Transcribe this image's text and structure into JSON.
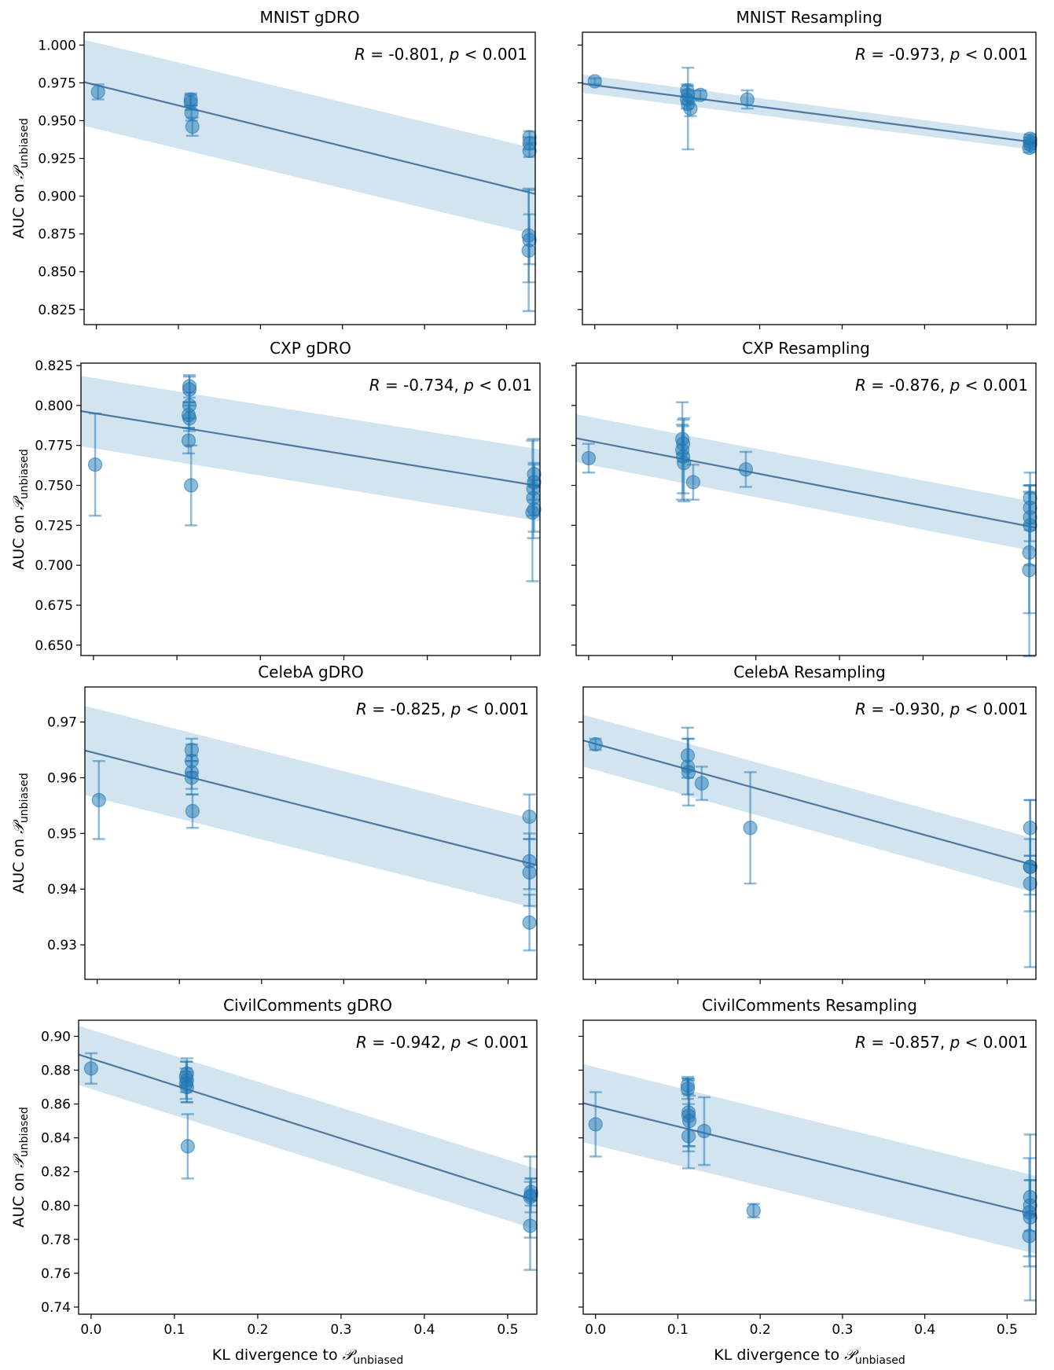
{
  "figure": {
    "xlabel_main": "KL divergence to ",
    "ylabel_main": "AUC on ",
    "script_symbol": "𝒫",
    "subscript": "unbiased"
  },
  "chart_data": [
    {
      "type": "scatter",
      "title": "MNIST gDRO",
      "stat": {
        "r": "-0.801",
        "p": "< 0.001"
      },
      "xlim": [
        -0.015,
        0.535
      ],
      "ylim": [
        0.815,
        1.0085
      ],
      "xticks": [
        0.0,
        0.1,
        0.2,
        0.3,
        0.4,
        0.5
      ],
      "yticks": [
        "0.825",
        "0.850",
        "0.875",
        "0.900",
        "0.925",
        "0.950",
        "0.975",
        "1.000"
      ],
      "show_ylabels": true,
      "show_xlabels": false,
      "fit": {
        "x0": -0.015,
        "y0": 0.9755,
        "x1": 0.535,
        "y1": 0.9015
      },
      "band": {
        "upper0": 1.0035,
        "upper1": 0.9315,
        "lower0": 0.9465,
        "lower1": 0.8745
      },
      "points": [
        {
          "x": 0.002,
          "y": 0.969,
          "lo": 0.964,
          "hi": 0.974
        },
        {
          "x": 0.115,
          "y": 0.964,
          "lo": 0.96,
          "hi": 0.968
        },
        {
          "x": 0.115,
          "y": 0.962,
          "lo": 0.957,
          "hi": 0.967
        },
        {
          "x": 0.116,
          "y": 0.955,
          "lo": 0.95,
          "hi": 0.96
        },
        {
          "x": 0.117,
          "y": 0.946,
          "lo": 0.94,
          "hi": 0.952
        },
        {
          "x": 0.528,
          "y": 0.939,
          "lo": 0.935,
          "hi": 0.943
        },
        {
          "x": 0.528,
          "y": 0.935,
          "lo": 0.931,
          "hi": 0.939
        },
        {
          "x": 0.528,
          "y": 0.93,
          "lo": 0.926,
          "hi": 0.934
        },
        {
          "x": 0.527,
          "y": 0.874,
          "lo": 0.843,
          "hi": 0.905
        },
        {
          "x": 0.528,
          "y": 0.871,
          "lo": 0.855,
          "hi": 0.888
        },
        {
          "x": 0.527,
          "y": 0.864,
          "lo": 0.824,
          "hi": 0.904
        }
      ]
    },
    {
      "type": "scatter",
      "title": "MNIST Resampling",
      "stat": {
        "r": "-0.973",
        "p": "< 0.001"
      },
      "xlim": [
        -0.015,
        0.535
      ],
      "ylim": [
        0.815,
        1.0085
      ],
      "xticks": [
        0.0,
        0.1,
        0.2,
        0.3,
        0.4,
        0.5
      ],
      "yticks": [
        "0.825",
        "0.850",
        "0.875",
        "0.900",
        "0.925",
        "0.950",
        "0.975",
        "1.000"
      ],
      "show_ylabels": false,
      "show_xlabels": false,
      "fit": {
        "x0": -0.015,
        "y0": 0.9745,
        "x1": 0.535,
        "y1": 0.9355
      },
      "band": {
        "upper0": 0.9805,
        "upper1": 0.9405,
        "lower0": 0.9685,
        "lower1": 0.9305
      },
      "points": [
        {
          "x": 0.0,
          "y": 0.976,
          "lo": 0.974,
          "hi": 0.978
        },
        {
          "x": 0.112,
          "y": 0.97,
          "lo": 0.966,
          "hi": 0.974
        },
        {
          "x": 0.113,
          "y": 0.967,
          "lo": 0.961,
          "hi": 0.973
        },
        {
          "x": 0.112,
          "y": 0.964,
          "lo": 0.958,
          "hi": 0.97
        },
        {
          "x": 0.113,
          "y": 0.961,
          "lo": 0.931,
          "hi": 0.985
        },
        {
          "x": 0.116,
          "y": 0.958,
          "lo": 0.953,
          "hi": 0.963
        },
        {
          "x": 0.128,
          "y": 0.967,
          "lo": 0.964,
          "hi": 0.97
        },
        {
          "x": 0.185,
          "y": 0.964,
          "lo": 0.958,
          "hi": 0.97
        },
        {
          "x": 0.528,
          "y": 0.938,
          "lo": 0.935,
          "hi": 0.941
        },
        {
          "x": 0.528,
          "y": 0.936,
          "lo": 0.933,
          "hi": 0.939
        },
        {
          "x": 0.528,
          "y": 0.934,
          "lo": 0.931,
          "hi": 0.937
        },
        {
          "x": 0.527,
          "y": 0.932,
          "lo": 0.929,
          "hi": 0.935
        }
      ]
    },
    {
      "type": "scatter",
      "title": "CXP gDRO",
      "stat": {
        "r": "-0.734",
        "p": "< 0.01"
      },
      "xlim": [
        -0.015,
        0.535
      ],
      "ylim": [
        0.6435,
        0.8265
      ],
      "xticks": [
        0.0,
        0.1,
        0.2,
        0.3,
        0.4,
        0.5
      ],
      "yticks": [
        "0.650",
        "0.675",
        "0.700",
        "0.725",
        "0.750",
        "0.775",
        "0.800",
        "0.825"
      ],
      "show_ylabels": true,
      "show_xlabels": false,
      "fit": {
        "x0": -0.015,
        "y0": 0.7965,
        "x1": 0.535,
        "y1": 0.7495
      },
      "band": {
        "upper0": 0.8185,
        "upper1": 0.7725,
        "lower0": 0.7745,
        "lower1": 0.7275
      },
      "points": [
        {
          "x": 0.002,
          "y": 0.763,
          "lo": 0.731,
          "hi": 0.795
        },
        {
          "x": 0.115,
          "y": 0.812,
          "lo": 0.805,
          "hi": 0.819
        },
        {
          "x": 0.115,
          "y": 0.81,
          "lo": 0.802,
          "hi": 0.818
        },
        {
          "x": 0.115,
          "y": 0.8,
          "lo": 0.792,
          "hi": 0.808
        },
        {
          "x": 0.114,
          "y": 0.794,
          "lo": 0.786,
          "hi": 0.802
        },
        {
          "x": 0.115,
          "y": 0.792,
          "lo": 0.784,
          "hi": 0.8
        },
        {
          "x": 0.114,
          "y": 0.778,
          "lo": 0.77,
          "hi": 0.786
        },
        {
          "x": 0.117,
          "y": 0.75,
          "lo": 0.725,
          "hi": 0.775
        },
        {
          "x": 0.528,
          "y": 0.757,
          "lo": 0.75,
          "hi": 0.764
        },
        {
          "x": 0.528,
          "y": 0.752,
          "lo": 0.741,
          "hi": 0.763
        },
        {
          "x": 0.527,
          "y": 0.748,
          "lo": 0.717,
          "hi": 0.779
        },
        {
          "x": 0.527,
          "y": 0.742,
          "lo": 0.731,
          "hi": 0.753
        },
        {
          "x": 0.528,
          "y": 0.735,
          "lo": 0.721,
          "hi": 0.749
        },
        {
          "x": 0.526,
          "y": 0.733,
          "lo": 0.69,
          "hi": 0.778
        }
      ]
    },
    {
      "type": "scatter",
      "title": "CXP Resampling",
      "stat": {
        "r": "-0.876",
        "p": "< 0.001"
      },
      "xlim": [
        -0.015,
        0.535
      ],
      "ylim": [
        0.6435,
        0.8265
      ],
      "xticks": [
        0.0,
        0.1,
        0.2,
        0.3,
        0.4,
        0.5
      ],
      "yticks": [
        "0.650",
        "0.675",
        "0.700",
        "0.725",
        "0.750",
        "0.775",
        "0.800",
        "0.825"
      ],
      "show_ylabels": false,
      "show_xlabels": false,
      "fit": {
        "x0": -0.015,
        "y0": 0.7795,
        "x1": 0.535,
        "y1": 0.7235
      },
      "band": {
        "upper0": 0.7945,
        "upper1": 0.7395,
        "lower0": 0.7645,
        "lower1": 0.7085
      },
      "points": [
        {
          "x": 0.0,
          "y": 0.767,
          "lo": 0.758,
          "hi": 0.776
        },
        {
          "x": 0.112,
          "y": 0.779,
          "lo": 0.77,
          "hi": 0.788
        },
        {
          "x": 0.113,
          "y": 0.776,
          "lo": 0.765,
          "hi": 0.787
        },
        {
          "x": 0.112,
          "y": 0.772,
          "lo": 0.741,
          "hi": 0.802
        },
        {
          "x": 0.113,
          "y": 0.768,
          "lo": 0.745,
          "hi": 0.791
        },
        {
          "x": 0.114,
          "y": 0.764,
          "lo": 0.74,
          "hi": 0.792
        },
        {
          "x": 0.125,
          "y": 0.752,
          "lo": 0.741,
          "hi": 0.763
        },
        {
          "x": 0.188,
          "y": 0.76,
          "lo": 0.749,
          "hi": 0.771
        },
        {
          "x": 0.528,
          "y": 0.742,
          "lo": 0.726,
          "hi": 0.758
        },
        {
          "x": 0.528,
          "y": 0.736,
          "lo": 0.722,
          "hi": 0.75
        },
        {
          "x": 0.528,
          "y": 0.73,
          "lo": 0.715,
          "hi": 0.745
        },
        {
          "x": 0.528,
          "y": 0.725,
          "lo": 0.7,
          "hi": 0.75
        },
        {
          "x": 0.527,
          "y": 0.708,
          "lo": 0.67,
          "hi": 0.746
        },
        {
          "x": 0.527,
          "y": 0.697,
          "lo": 0.643,
          "hi": 0.75
        }
      ]
    },
    {
      "type": "scatter",
      "title": "CelebA gDRO",
      "stat": {
        "r": "-0.825",
        "p": "< 0.001"
      },
      "xlim": [
        -0.015,
        0.535
      ],
      "ylim": [
        0.9238,
        0.9763
      ],
      "xticks": [
        0.0,
        0.1,
        0.2,
        0.3,
        0.4,
        0.5
      ],
      "yticks": [
        "0.93",
        "0.94",
        "0.95",
        "0.96",
        "0.97"
      ],
      "show_ylabels": true,
      "show_xlabels": false,
      "fit": {
        "x0": -0.015,
        "y0": 0.9649,
        "x1": 0.535,
        "y1": 0.9443
      },
      "band": {
        "upper0": 0.9729,
        "upper1": 0.9524,
        "lower0": 0.9569,
        "lower1": 0.9365
      },
      "points": [
        {
          "x": 0.002,
          "y": 0.956,
          "lo": 0.949,
          "hi": 0.963
        },
        {
          "x": 0.115,
          "y": 0.965,
          "lo": 0.963,
          "hi": 0.967
        },
        {
          "x": 0.115,
          "y": 0.963,
          "lo": 0.961,
          "hi": 0.966
        },
        {
          "x": 0.115,
          "y": 0.961,
          "lo": 0.958,
          "hi": 0.964
        },
        {
          "x": 0.115,
          "y": 0.96,
          "lo": 0.957,
          "hi": 0.963
        },
        {
          "x": 0.116,
          "y": 0.954,
          "lo": 0.951,
          "hi": 0.957
        },
        {
          "x": 0.526,
          "y": 0.953,
          "lo": 0.949,
          "hi": 0.957
        },
        {
          "x": 0.526,
          "y": 0.945,
          "lo": 0.94,
          "hi": 0.95
        },
        {
          "x": 0.526,
          "y": 0.943,
          "lo": 0.937,
          "hi": 0.949
        },
        {
          "x": 0.526,
          "y": 0.934,
          "lo": 0.929,
          "hi": 0.939
        }
      ]
    },
    {
      "type": "scatter",
      "title": "CelebA Resampling",
      "stat": {
        "r": "-0.930",
        "p": "< 0.001"
      },
      "xlim": [
        -0.015,
        0.535
      ],
      "ylim": [
        0.9238,
        0.9763
      ],
      "xticks": [
        0.0,
        0.1,
        0.2,
        0.3,
        0.4,
        0.5
      ],
      "yticks": [
        "0.93",
        "0.94",
        "0.95",
        "0.96",
        "0.97"
      ],
      "show_ylabels": false,
      "show_xlabels": false,
      "fit": {
        "x0": -0.015,
        "y0": 0.9667,
        "x1": 0.535,
        "y1": 0.9442
      },
      "band": {
        "upper0": 0.9713,
        "upper1": 0.949,
        "lower0": 0.962,
        "lower1": 0.9393
      },
      "points": [
        {
          "x": 0.0,
          "y": 0.966,
          "lo": 0.965,
          "hi": 0.967
        },
        {
          "x": 0.112,
          "y": 0.964,
          "lo": 0.96,
          "hi": 0.969
        },
        {
          "x": 0.112,
          "y": 0.962,
          "lo": 0.957,
          "hi": 0.967
        },
        {
          "x": 0.113,
          "y": 0.961,
          "lo": 0.955,
          "hi": 0.967
        },
        {
          "x": 0.129,
          "y": 0.959,
          "lo": 0.956,
          "hi": 0.962
        },
        {
          "x": 0.188,
          "y": 0.951,
          "lo": 0.941,
          "hi": 0.961
        },
        {
          "x": 0.528,
          "y": 0.951,
          "lo": 0.946,
          "hi": 0.956
        },
        {
          "x": 0.528,
          "y": 0.944,
          "lo": 0.939,
          "hi": 0.949
        },
        {
          "x": 0.528,
          "y": 0.944,
          "lo": 0.926,
          "hi": 0.956
        },
        {
          "x": 0.528,
          "y": 0.941,
          "lo": 0.936,
          "hi": 0.946
        }
      ]
    },
    {
      "type": "scatter",
      "title": "CivilComments gDRO",
      "stat": {
        "r": "-0.942",
        "p": "< 0.001"
      },
      "xlim": [
        -0.015,
        0.535
      ],
      "ylim": [
        0.7358,
        0.9095
      ],
      "xticks": [
        0.0,
        0.1,
        0.2,
        0.3,
        0.4,
        0.5
      ],
      "yticks": [
        "0.74",
        "0.76",
        "0.78",
        "0.80",
        "0.82",
        "0.84",
        "0.86",
        "0.88",
        "0.90"
      ],
      "xtick_labels": [
        "0.0",
        "0.1",
        "0.2",
        "0.3",
        "0.4",
        "0.5"
      ],
      "show_ylabels": true,
      "show_xlabels": true,
      "fit": {
        "x0": -0.015,
        "y0": 0.8892,
        "x1": 0.535,
        "y1": 0.8027
      },
      "band": {
        "upper0": 0.9062,
        "upper1": 0.8217,
        "lower0": 0.8712,
        "lower1": 0.7857
      },
      "points": [
        {
          "x": 0.0,
          "y": 0.881,
          "lo": 0.872,
          "hi": 0.89
        },
        {
          "x": 0.115,
          "y": 0.878,
          "lo": 0.871,
          "hi": 0.885
        },
        {
          "x": 0.114,
          "y": 0.876,
          "lo": 0.867,
          "hi": 0.885
        },
        {
          "x": 0.115,
          "y": 0.874,
          "lo": 0.861,
          "hi": 0.887
        },
        {
          "x": 0.114,
          "y": 0.872,
          "lo": 0.863,
          "hi": 0.881
        },
        {
          "x": 0.115,
          "y": 0.87,
          "lo": 0.861,
          "hi": 0.879
        },
        {
          "x": 0.116,
          "y": 0.835,
          "lo": 0.816,
          "hi": 0.854
        },
        {
          "x": 0.528,
          "y": 0.808,
          "lo": 0.8,
          "hi": 0.816
        },
        {
          "x": 0.528,
          "y": 0.806,
          "lo": 0.796,
          "hi": 0.816
        },
        {
          "x": 0.527,
          "y": 0.805,
          "lo": 0.781,
          "hi": 0.829
        },
        {
          "x": 0.527,
          "y": 0.788,
          "lo": 0.762,
          "hi": 0.814
        }
      ]
    },
    {
      "type": "scatter",
      "title": "CivilComments Resampling",
      "stat": {
        "r": "-0.857",
        "p": "< 0.001"
      },
      "xlim": [
        -0.015,
        0.535
      ],
      "ylim": [
        0.7358,
        0.9095
      ],
      "xticks": [
        0.0,
        0.1,
        0.2,
        0.3,
        0.4,
        0.5
      ],
      "yticks": [
        "0.74",
        "0.76",
        "0.78",
        "0.80",
        "0.82",
        "0.84",
        "0.86",
        "0.88",
        "0.90"
      ],
      "xtick_labels": [
        "0.0",
        "0.1",
        "0.2",
        "0.3",
        "0.4",
        "0.5"
      ],
      "show_ylabels": false,
      "show_xlabels": true,
      "fit": {
        "x0": -0.015,
        "y0": 0.8605,
        "x1": 0.535,
        "y1": 0.7945
      },
      "band": {
        "upper0": 0.8835,
        "upper1": 0.8175,
        "lower0": 0.8375,
        "lower1": 0.7715
      },
      "points": [
        {
          "x": 0.0,
          "y": 0.848,
          "lo": 0.829,
          "hi": 0.867
        },
        {
          "x": 0.112,
          "y": 0.871,
          "lo": 0.866,
          "hi": 0.876
        },
        {
          "x": 0.112,
          "y": 0.869,
          "lo": 0.863,
          "hi": 0.875
        },
        {
          "x": 0.113,
          "y": 0.855,
          "lo": 0.835,
          "hi": 0.875
        },
        {
          "x": 0.113,
          "y": 0.853,
          "lo": 0.832,
          "hi": 0.874
        },
        {
          "x": 0.114,
          "y": 0.85,
          "lo": 0.835,
          "hi": 0.865
        },
        {
          "x": 0.113,
          "y": 0.841,
          "lo": 0.822,
          "hi": 0.86
        },
        {
          "x": 0.132,
          "y": 0.844,
          "lo": 0.824,
          "hi": 0.864
        },
        {
          "x": 0.192,
          "y": 0.797,
          "lo": 0.793,
          "hi": 0.801
        },
        {
          "x": 0.528,
          "y": 0.805,
          "lo": 0.795,
          "hi": 0.815
        },
        {
          "x": 0.528,
          "y": 0.8,
          "lo": 0.785,
          "hi": 0.815
        },
        {
          "x": 0.527,
          "y": 0.796,
          "lo": 0.764,
          "hi": 0.828
        },
        {
          "x": 0.528,
          "y": 0.793,
          "lo": 0.744,
          "hi": 0.842
        },
        {
          "x": 0.527,
          "y": 0.782,
          "lo": 0.77,
          "hi": 0.794
        }
      ]
    }
  ]
}
